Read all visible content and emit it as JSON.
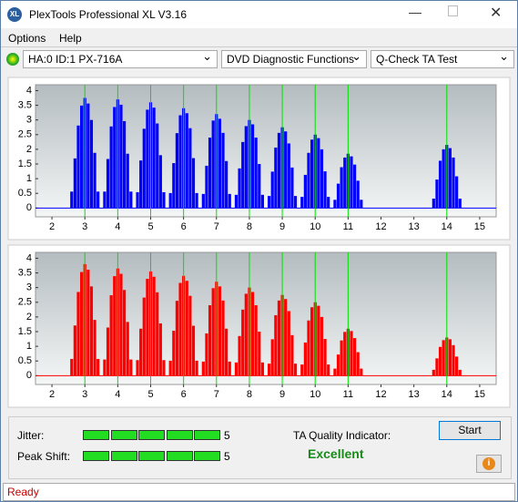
{
  "window": {
    "title": "PlexTools Professional XL V3.16"
  },
  "menu": [
    "Options",
    "Help"
  ],
  "toolbar": {
    "drive": "HA:0 ID:1  PX-716A",
    "function": "DVD Diagnostic Functions",
    "test": "Q-Check TA Test"
  },
  "charts": [
    {
      "type": "bar",
      "color": "#0000ff",
      "xlim": [
        1.5,
        15.5
      ],
      "ylim": [
        -0.3,
        4.2
      ],
      "xticks": [
        2,
        3,
        4,
        5,
        6,
        7,
        8,
        9,
        10,
        11,
        12,
        13,
        14,
        15
      ],
      "yticks": [
        0,
        0.5,
        1,
        1.5,
        2,
        2.5,
        3,
        3.5,
        4
      ],
      "markers": [
        3,
        4,
        5,
        6,
        7,
        8,
        9,
        10,
        11,
        14
      ],
      "marker_color": "#00e000",
      "x": [
        2.6,
        2.7,
        2.8,
        2.9,
        3,
        3.1,
        3.2,
        3.3,
        3.4,
        3.6,
        3.7,
        3.8,
        3.9,
        4,
        4.1,
        4.2,
        4.3,
        4.4,
        4.6,
        4.7,
        4.8,
        4.9,
        5,
        5.1,
        5.2,
        5.3,
        5.4,
        5.6,
        5.7,
        5.8,
        5.9,
        6,
        6.1,
        6.2,
        6.3,
        6.4,
        6.6,
        6.7,
        6.8,
        6.9,
        7,
        7.1,
        7.2,
        7.3,
        7.4,
        7.6,
        7.7,
        7.8,
        7.9,
        8,
        8.1,
        8.2,
        8.3,
        8.4,
        8.6,
        8.7,
        8.8,
        8.9,
        9,
        9.1,
        9.2,
        9.3,
        9.4,
        9.6,
        9.7,
        9.8,
        9.9,
        10,
        10.1,
        10.2,
        10.3,
        10.4,
        10.6,
        10.7,
        10.8,
        10.9,
        11,
        11.1,
        11.2,
        11.3,
        11.4,
        13.6,
        13.7,
        13.8,
        13.9,
        14,
        14.1,
        14.2,
        14.3,
        14.4
      ],
      "values": [
        0.56,
        1.69,
        2.81,
        3.49,
        3.75,
        3.56,
        3.0,
        1.88,
        0.56,
        0.56,
        1.67,
        2.78,
        3.44,
        3.7,
        3.52,
        2.96,
        1.85,
        0.56,
        0.54,
        1.62,
        2.7,
        3.35,
        3.6,
        3.42,
        2.88,
        1.8,
        0.54,
        0.51,
        1.53,
        2.55,
        3.16,
        3.4,
        3.23,
        2.72,
        1.7,
        0.51,
        0.48,
        1.44,
        2.4,
        2.98,
        3.2,
        3.04,
        2.56,
        1.6,
        0.48,
        0.45,
        1.35,
        2.25,
        2.79,
        3.0,
        2.85,
        2.4,
        1.5,
        0.45,
        0.41,
        1.24,
        2.06,
        2.56,
        2.75,
        2.61,
        2.2,
        1.38,
        0.41,
        0.38,
        1.13,
        1.88,
        2.33,
        2.5,
        2.38,
        2.0,
        1.25,
        0.38,
        0.28,
        0.83,
        1.39,
        1.72,
        1.85,
        1.76,
        1.48,
        0.93,
        0.28,
        0.32,
        0.97,
        1.61,
        2.0,
        2.15,
        2.04,
        1.72,
        1.08,
        0.32
      ]
    },
    {
      "type": "bar",
      "color": "#ff0000",
      "xlim": [
        1.5,
        15.5
      ],
      "ylim": [
        -0.3,
        4.2
      ],
      "xticks": [
        2,
        3,
        4,
        5,
        6,
        7,
        8,
        9,
        10,
        11,
        12,
        13,
        14,
        15
      ],
      "yticks": [
        0,
        0.5,
        1,
        1.5,
        2,
        2.5,
        3,
        3.5,
        4
      ],
      "markers": [
        3,
        4,
        5,
        6,
        7,
        8,
        9,
        10,
        11,
        14
      ],
      "marker_color": "#00e000",
      "x": [
        2.6,
        2.7,
        2.8,
        2.9,
        3,
        3.1,
        3.2,
        3.3,
        3.4,
        3.6,
        3.7,
        3.8,
        3.9,
        4,
        4.1,
        4.2,
        4.3,
        4.4,
        4.6,
        4.7,
        4.8,
        4.9,
        5,
        5.1,
        5.2,
        5.3,
        5.4,
        5.6,
        5.7,
        5.8,
        5.9,
        6,
        6.1,
        6.2,
        6.3,
        6.4,
        6.6,
        6.7,
        6.8,
        6.9,
        7,
        7.1,
        7.2,
        7.3,
        7.4,
        7.6,
        7.7,
        7.8,
        7.9,
        8,
        8.1,
        8.2,
        8.3,
        8.4,
        8.6,
        8.7,
        8.8,
        8.9,
        9,
        9.1,
        9.2,
        9.3,
        9.4,
        9.6,
        9.7,
        9.8,
        9.9,
        10,
        10.1,
        10.2,
        10.3,
        10.4,
        10.6,
        10.7,
        10.8,
        10.9,
        11,
        11.1,
        11.2,
        11.3,
        11.4,
        13.6,
        13.7,
        13.8,
        13.9,
        14,
        14.1,
        14.2,
        14.3,
        14.4
      ],
      "values": [
        0.57,
        1.71,
        2.85,
        3.53,
        3.8,
        3.61,
        3.04,
        1.9,
        0.57,
        0.55,
        1.64,
        2.74,
        3.39,
        3.65,
        3.47,
        2.92,
        1.83,
        0.55,
        0.53,
        1.6,
        2.66,
        3.3,
        3.55,
        3.37,
        2.84,
        1.78,
        0.53,
        0.51,
        1.53,
        2.55,
        3.16,
        3.4,
        3.23,
        2.72,
        1.7,
        0.51,
        0.48,
        1.44,
        2.4,
        2.98,
        3.2,
        3.04,
        2.56,
        1.6,
        0.48,
        0.45,
        1.35,
        2.25,
        2.79,
        3.0,
        2.85,
        2.4,
        1.5,
        0.45,
        0.41,
        1.24,
        2.06,
        2.56,
        2.75,
        2.61,
        2.2,
        1.38,
        0.41,
        0.38,
        1.13,
        1.88,
        2.33,
        2.5,
        2.38,
        2.0,
        1.25,
        0.38,
        0.24,
        0.72,
        1.2,
        1.49,
        1.6,
        1.52,
        1.28,
        0.8,
        0.24,
        0.2,
        0.59,
        0.98,
        1.21,
        1.3,
        1.24,
        1.04,
        0.65,
        0.2
      ]
    }
  ],
  "results": {
    "jitter_label": "Jitter:",
    "jitter": 5,
    "peak_shift_label": "Peak Shift:",
    "peak_shift": 5,
    "ta_label": "TA Quality Indicator:",
    "ta_value": "Excellent",
    "start": "Start"
  },
  "status": "Ready"
}
